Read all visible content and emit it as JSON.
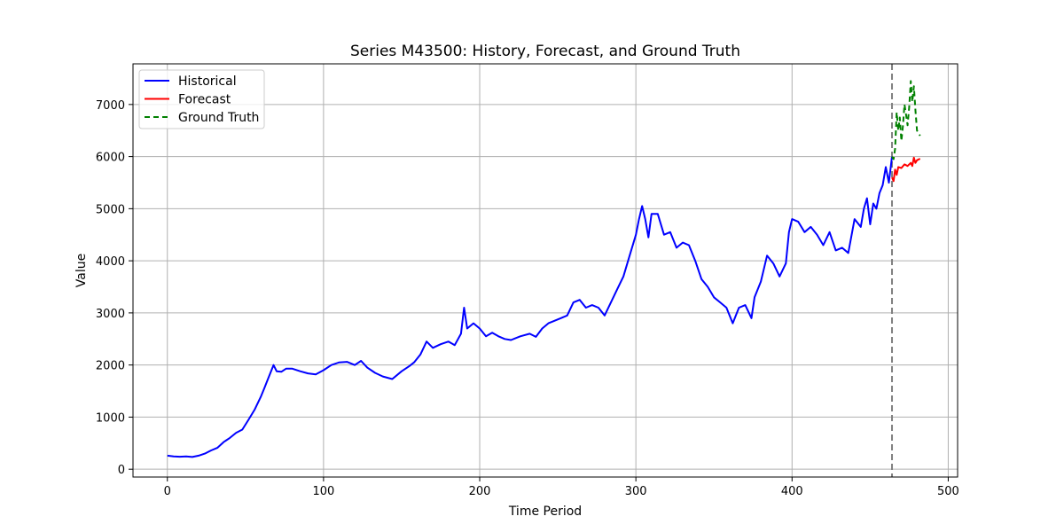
{
  "chart_data": {
    "type": "line",
    "title": "Series M43500: History, Forecast, and Ground Truth",
    "xlabel": "Time Period",
    "ylabel": "Value",
    "xlim": [
      -22,
      506
    ],
    "ylim": [
      -150,
      7780
    ],
    "xticks": [
      0,
      100,
      200,
      300,
      400,
      500
    ],
    "yticks": [
      0,
      1000,
      2000,
      3000,
      4000,
      5000,
      6000,
      7000
    ],
    "grid": true,
    "legend_position": "top-left",
    "forecast_origin": 464,
    "series": [
      {
        "name": "Historical",
        "color": "#0000ff",
        "style": "solid",
        "points": [
          [
            0,
            260
          ],
          [
            4,
            245
          ],
          [
            8,
            240
          ],
          [
            12,
            245
          ],
          [
            16,
            235
          ],
          [
            20,
            260
          ],
          [
            24,
            300
          ],
          [
            28,
            360
          ],
          [
            32,
            410
          ],
          [
            36,
            520
          ],
          [
            40,
            600
          ],
          [
            44,
            700
          ],
          [
            48,
            760
          ],
          [
            52,
            950
          ],
          [
            56,
            1150
          ],
          [
            60,
            1400
          ],
          [
            62,
            1550
          ],
          [
            64,
            1700
          ],
          [
            66,
            1850
          ],
          [
            68,
            2000
          ],
          [
            70,
            1880
          ],
          [
            73,
            1870
          ],
          [
            76,
            1930
          ],
          [
            80,
            1930
          ],
          [
            85,
            1880
          ],
          [
            90,
            1840
          ],
          [
            95,
            1820
          ],
          [
            100,
            1900
          ],
          [
            105,
            2000
          ],
          [
            110,
            2050
          ],
          [
            115,
            2060
          ],
          [
            120,
            2000
          ],
          [
            124,
            2080
          ],
          [
            128,
            1950
          ],
          [
            133,
            1850
          ],
          [
            138,
            1780
          ],
          [
            144,
            1730
          ],
          [
            150,
            1880
          ],
          [
            155,
            1980
          ],
          [
            158,
            2050
          ],
          [
            162,
            2200
          ],
          [
            166,
            2450
          ],
          [
            170,
            2330
          ],
          [
            175,
            2400
          ],
          [
            180,
            2450
          ],
          [
            184,
            2380
          ],
          [
            188,
            2600
          ],
          [
            190,
            3100
          ],
          [
            192,
            2700
          ],
          [
            196,
            2800
          ],
          [
            200,
            2700
          ],
          [
            204,
            2550
          ],
          [
            208,
            2620
          ],
          [
            212,
            2550
          ],
          [
            216,
            2500
          ],
          [
            220,
            2480
          ],
          [
            226,
            2550
          ],
          [
            232,
            2600
          ],
          [
            236,
            2540
          ],
          [
            240,
            2700
          ],
          [
            244,
            2800
          ],
          [
            248,
            2850
          ],
          [
            252,
            2900
          ],
          [
            256,
            2950
          ],
          [
            260,
            3200
          ],
          [
            264,
            3250
          ],
          [
            268,
            3100
          ],
          [
            272,
            3150
          ],
          [
            276,
            3100
          ],
          [
            280,
            2950
          ],
          [
            284,
            3200
          ],
          [
            288,
            3450
          ],
          [
            292,
            3700
          ],
          [
            296,
            4100
          ],
          [
            300,
            4500
          ],
          [
            302,
            4800
          ],
          [
            304,
            5050
          ],
          [
            306,
            4800
          ],
          [
            308,
            4450
          ],
          [
            310,
            4900
          ],
          [
            314,
            4900
          ],
          [
            318,
            4500
          ],
          [
            322,
            4550
          ],
          [
            326,
            4250
          ],
          [
            330,
            4350
          ],
          [
            334,
            4300
          ],
          [
            338,
            4000
          ],
          [
            342,
            3650
          ],
          [
            346,
            3500
          ],
          [
            350,
            3300
          ],
          [
            354,
            3200
          ],
          [
            358,
            3100
          ],
          [
            362,
            2800
          ],
          [
            366,
            3100
          ],
          [
            370,
            3150
          ],
          [
            374,
            2900
          ],
          [
            376,
            3300
          ],
          [
            380,
            3600
          ],
          [
            384,
            4100
          ],
          [
            388,
            3950
          ],
          [
            392,
            3700
          ],
          [
            396,
            3950
          ],
          [
            398,
            4550
          ],
          [
            400,
            4800
          ],
          [
            404,
            4750
          ],
          [
            408,
            4550
          ],
          [
            412,
            4650
          ],
          [
            416,
            4500
          ],
          [
            420,
            4300
          ],
          [
            424,
            4550
          ],
          [
            428,
            4200
          ],
          [
            432,
            4250
          ],
          [
            436,
            4150
          ],
          [
            440,
            4800
          ],
          [
            444,
            4650
          ],
          [
            446,
            5000
          ],
          [
            448,
            5200
          ],
          [
            450,
            4700
          ],
          [
            452,
            5100
          ],
          [
            454,
            5000
          ],
          [
            456,
            5300
          ],
          [
            458,
            5450
          ],
          [
            460,
            5800
          ],
          [
            462,
            5500
          ],
          [
            464,
            6000
          ]
        ]
      },
      {
        "name": "Forecast",
        "color": "#ff0000",
        "style": "solid",
        "points": [
          [
            464,
            5600
          ],
          [
            465,
            5530
          ],
          [
            466,
            5750
          ],
          [
            467,
            5650
          ],
          [
            468,
            5800
          ],
          [
            470,
            5780
          ],
          [
            472,
            5850
          ],
          [
            474,
            5820
          ],
          [
            476,
            5880
          ],
          [
            477,
            5820
          ],
          [
            478,
            5980
          ],
          [
            479,
            5880
          ],
          [
            480,
            5930
          ],
          [
            482,
            5960
          ]
        ]
      },
      {
        "name": "Ground Truth",
        "color": "#008000",
        "style": "dashed",
        "points": [
          [
            464,
            6000
          ],
          [
            465,
            5950
          ],
          [
            466,
            6150
          ],
          [
            467,
            6850
          ],
          [
            468,
            6500
          ],
          [
            469,
            6750
          ],
          [
            470,
            6300
          ],
          [
            471,
            6600
          ],
          [
            472,
            7000
          ],
          [
            473,
            6800
          ],
          [
            474,
            6600
          ],
          [
            475,
            6950
          ],
          [
            476,
            7450
          ],
          [
            477,
            7050
          ],
          [
            478,
            7350
          ],
          [
            479,
            6900
          ],
          [
            480,
            6500
          ],
          [
            482,
            6400
          ]
        ]
      }
    ]
  }
}
